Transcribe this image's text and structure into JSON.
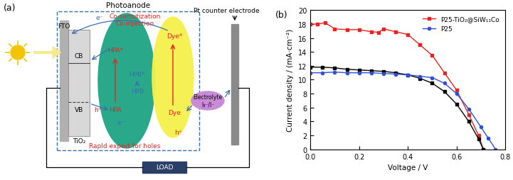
{
  "diagram": {
    "panel_label": "(a)",
    "title": "Photoanode",
    "counter_electrode": "Pt counter electrode",
    "fto": "FTO",
    "semiconductor": {
      "label": "TiO₂",
      "cb": "CB",
      "vb": "VB"
    },
    "notes": [
      "Co-sensitization",
      "Co-injection",
      "Rapld export for holes"
    ],
    "hpa": {
      "excited": "HPA*",
      "ground": "HPA"
    },
    "hpb": {
      "excited": "HPB*",
      "ground": "HPB"
    },
    "dye": {
      "excited": "Dye*",
      "ground": "Dye"
    },
    "electrolyte": {
      "label": "Electrolyte",
      "redox": "I₃⁻/I⁻"
    },
    "load": "LOAD",
    "electron": "e⁻",
    "hole": "h⁺"
  },
  "chart_data": {
    "type": "line",
    "panel_label": "(b)",
    "x_label": "Voltage / V",
    "y_label": "Current density / (mA·cm⁻²)",
    "xlim": [
      0,
      0.8
    ],
    "xticks": [
      {
        "value": 0,
        "label": "0.0"
      },
      0.2,
      0.4,
      0.6,
      0.8
    ],
    "ylim": [
      0,
      20
    ],
    "yticks": [
      0,
      2,
      4,
      6,
      8,
      10,
      12,
      14,
      16,
      18,
      20
    ],
    "legend": "upper right",
    "series": [
      {
        "name": "P25-TiO₂@SiW₁₁Co",
        "color": "#e8231f",
        "marker": "square",
        "line_style": "solid",
        "x": [
          0,
          0.03,
          0.06,
          0.1,
          0.15,
          0.2,
          0.25,
          0.28,
          0.3,
          0.35,
          0.4,
          0.45,
          0.5,
          0.55,
          0.6,
          0.65,
          0.69,
          0.71
        ],
        "values": [
          18.0,
          18.0,
          18.2,
          17.3,
          17.2,
          17.2,
          16.9,
          16.8,
          17.3,
          16.9,
          16.5,
          15.0,
          13.5,
          11.0,
          8.5,
          5.0,
          2.0,
          0
        ]
      },
      {
        "color": "#000000",
        "marker": "square",
        "line_style": "solid",
        "x": [
          0,
          0.05,
          0.1,
          0.15,
          0.2,
          0.25,
          0.3,
          0.35,
          0.4,
          0.45,
          0.5,
          0.55,
          0.6,
          0.65,
          0.69,
          0.71
        ],
        "values": [
          11.8,
          11.8,
          11.7,
          11.5,
          11.4,
          11.3,
          11.2,
          11.0,
          10.7,
          10.2,
          9.5,
          8.3,
          6.5,
          4.0,
          1.5,
          0
        ]
      },
      {
        "name": "P25",
        "color": "#2f4fd8",
        "marker": "circle",
        "line_style": "solid",
        "x": [
          0,
          0.05,
          0.1,
          0.15,
          0.2,
          0.25,
          0.3,
          0.35,
          0.4,
          0.45,
          0.5,
          0.55,
          0.6,
          0.65,
          0.7,
          0.73,
          0.76
        ],
        "values": [
          11.0,
          11.0,
          11.1,
          11.0,
          11.0,
          11.0,
          10.9,
          10.8,
          10.7,
          10.5,
          10.3,
          9.5,
          8.0,
          5.8,
          3.2,
          1.6,
          0
        ]
      }
    ]
  }
}
